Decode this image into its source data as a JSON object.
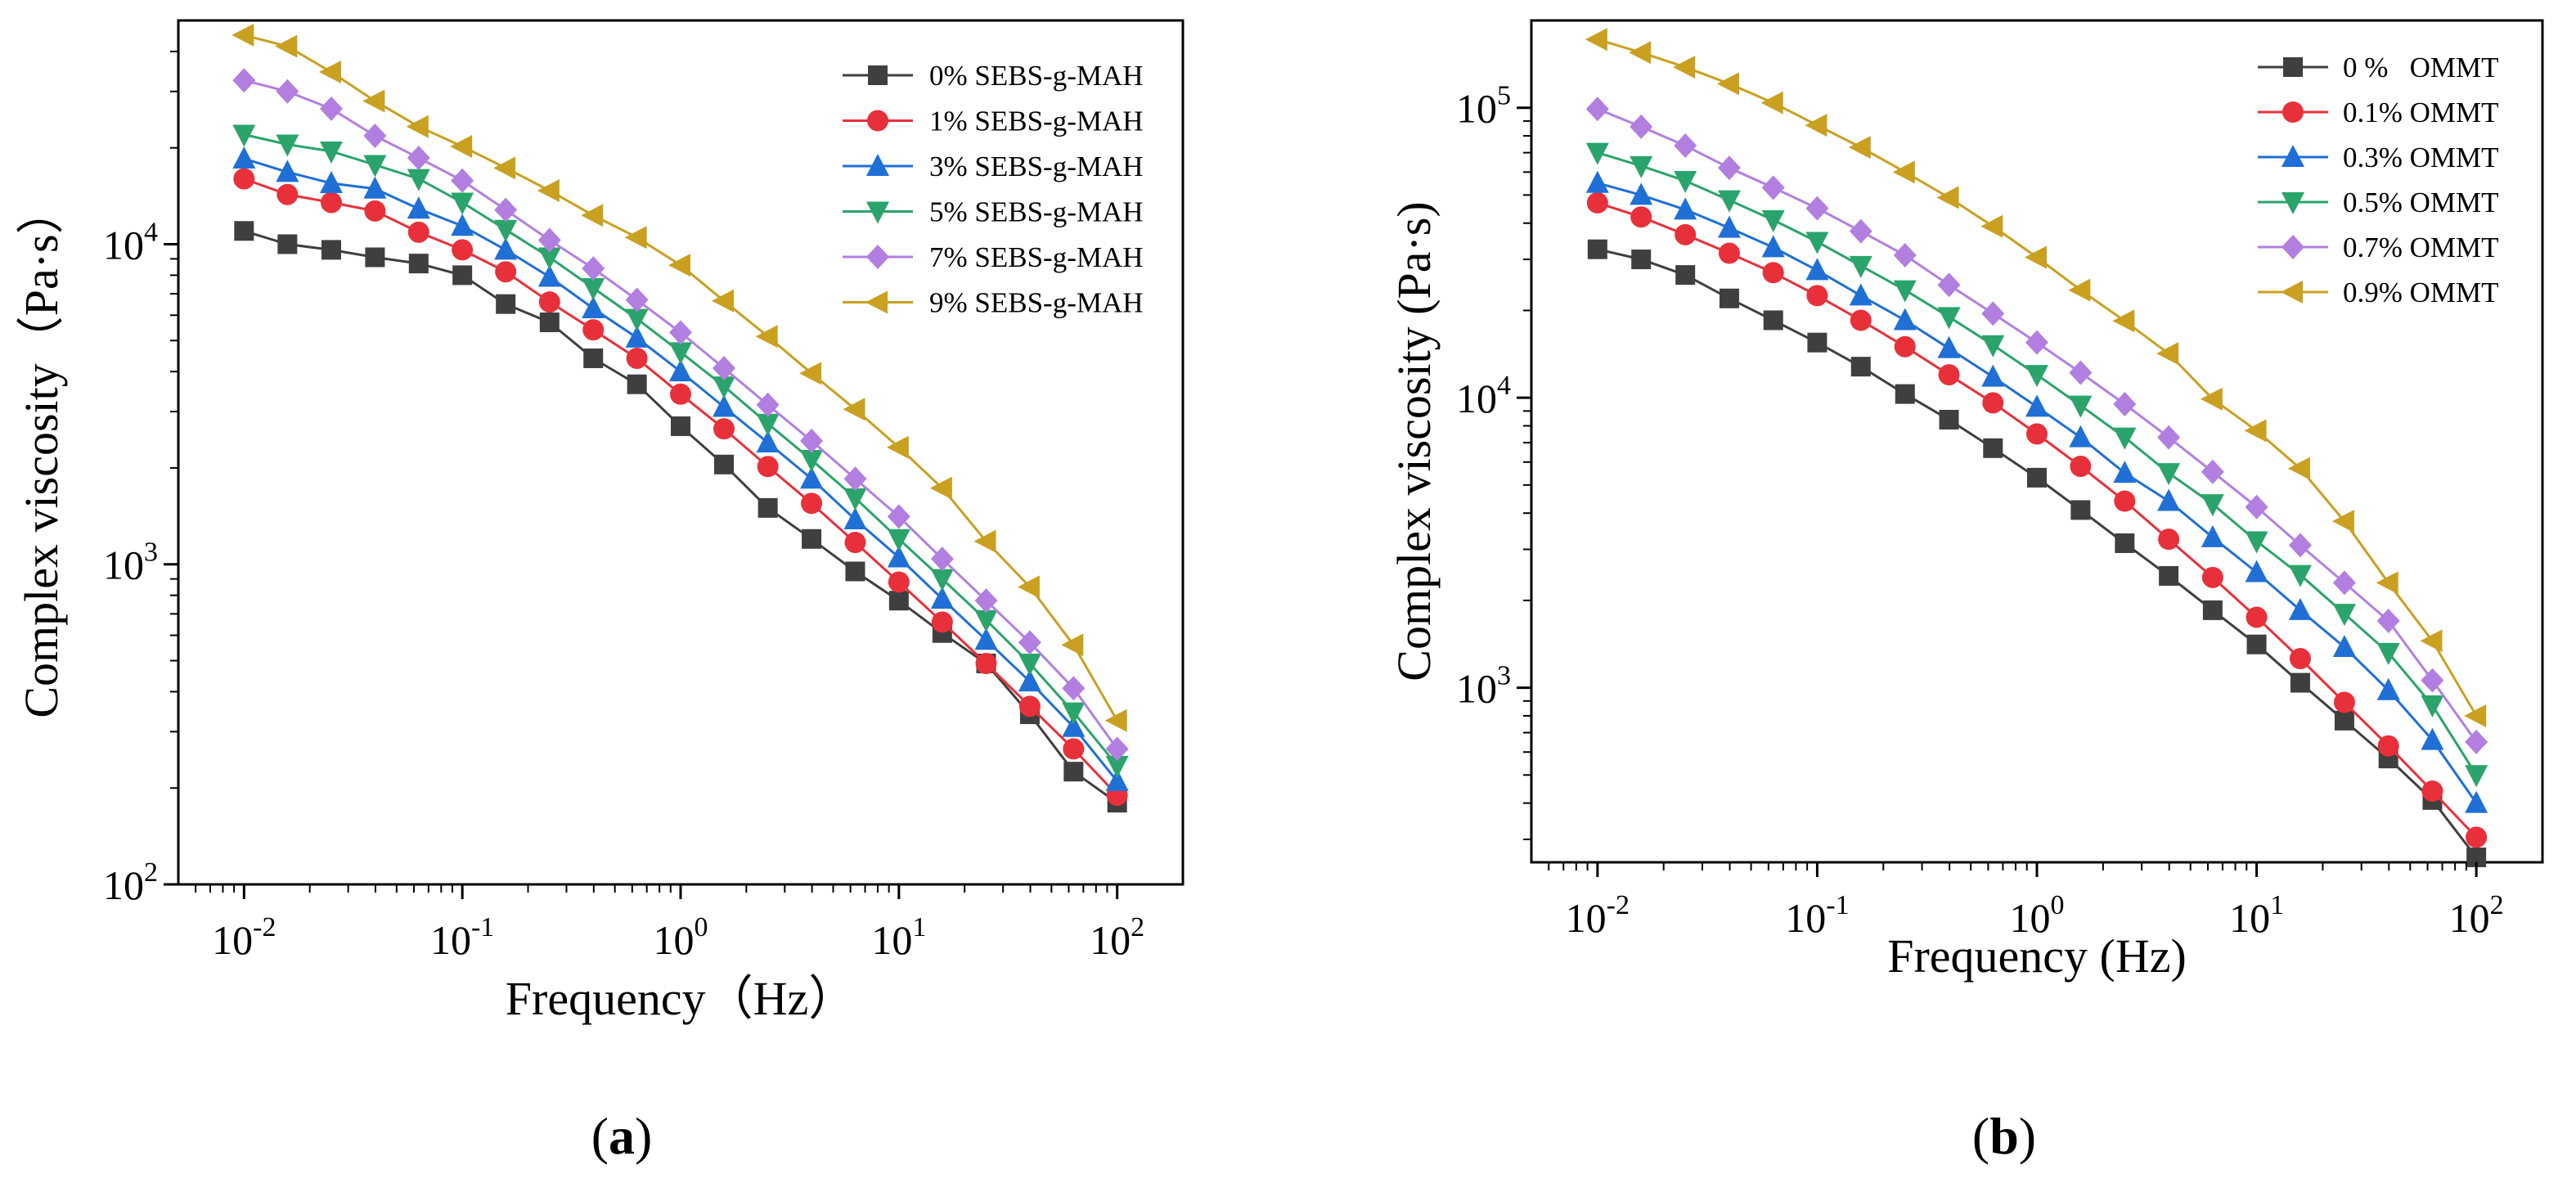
{
  "chart_data": [
    {
      "type": "line",
      "panel_label": "(a)",
      "panel_letter": "a",
      "xlabel": "Frequency（Hz）",
      "ylabel": "Complex viscosity（Pa·s）",
      "xscale": "log",
      "yscale": "log",
      "xlim": [
        0.005,
        200
      ],
      "ylim": [
        100,
        50000
      ],
      "x_ticks": [
        {
          "value": 0.01,
          "base": "10",
          "exp": "-2"
        },
        {
          "value": 0.1,
          "base": "10",
          "exp": "-1"
        },
        {
          "value": 1,
          "base": "10",
          "exp": "0"
        },
        {
          "value": 10,
          "base": "10",
          "exp": "1"
        },
        {
          "value": 100,
          "base": "10",
          "exp": "2"
        }
      ],
      "y_ticks": [
        {
          "value": 100,
          "base": "10",
          "exp": "2"
        },
        {
          "value": 1000,
          "base": "10",
          "exp": "3"
        },
        {
          "value": 10000,
          "base": "10",
          "exp": "4"
        }
      ],
      "legend_position": "top-right",
      "x": [
        0.01,
        0.0158,
        0.0251,
        0.0398,
        0.0631,
        0.1,
        0.158,
        0.251,
        0.398,
        0.631,
        1,
        1.58,
        2.51,
        3.98,
        6.31,
        10,
        15.8,
        25.1,
        39.8,
        63.1,
        100
      ],
      "series": [
        {
          "name": "0% SEBS-g-MAH",
          "color": "#3f3f3f",
          "marker": "square",
          "values": [
            11000,
            10000,
            9600,
            9100,
            8700,
            8000,
            6500,
            5700,
            4400,
            3650,
            2700,
            2050,
            1500,
            1200,
            950,
            770,
            610,
            490,
            340,
            225,
            180
          ]
        },
        {
          "name": "1% SEBS-g-MAH",
          "color": "#e8303a",
          "marker": "circle",
          "values": [
            16000,
            14300,
            13500,
            12700,
            10900,
            9600,
            8200,
            6600,
            5400,
            4400,
            3400,
            2650,
            2020,
            1550,
            1170,
            880,
            660,
            490,
            360,
            265,
            190
          ]
        },
        {
          "name": "3% SEBS-g-MAH",
          "color": "#1f6fd6",
          "marker": "triangle-up",
          "values": [
            18500,
            16800,
            15500,
            14900,
            12900,
            11400,
            9600,
            7900,
            6300,
            5100,
            4000,
            3100,
            2400,
            1850,
            1380,
            1050,
            780,
            580,
            430,
            310,
            210
          ]
        },
        {
          "name": "5% SEBS-g-MAH",
          "color": "#2aa46a",
          "marker": "triangle-down",
          "values": [
            22000,
            20500,
            19500,
            17700,
            16000,
            13500,
            11100,
            9100,
            7300,
            5850,
            4600,
            3600,
            2750,
            2120,
            1610,
            1200,
            900,
            670,
            490,
            345,
            235
          ]
        },
        {
          "name": "7% SEBS-g-MAH",
          "color": "#b27fe0",
          "marker": "diamond",
          "values": [
            32500,
            30000,
            26500,
            21800,
            18600,
            15800,
            12800,
            10300,
            8400,
            6700,
            5300,
            4100,
            3150,
            2430,
            1850,
            1410,
            1040,
            770,
            570,
            410,
            265
          ]
        },
        {
          "name": "9% SEBS-g-MAH",
          "color": "#c9a020",
          "marker": "triangle-left",
          "values": [
            45000,
            41500,
            34500,
            28000,
            23300,
            20200,
            17300,
            14700,
            12300,
            10500,
            8600,
            6650,
            5150,
            3950,
            3050,
            2320,
            1730,
            1180,
            850,
            560,
            325
          ]
        }
      ]
    },
    {
      "type": "line",
      "panel_label": "(b)",
      "panel_letter": "b",
      "xlabel": "Frequency (Hz)",
      "ylabel": "Complex viscosity (Pa·s)",
      "xscale": "log",
      "yscale": "log",
      "xlim": [
        0.005,
        200
      ],
      "ylim": [
        250,
        200000
      ],
      "x_ticks": [
        {
          "value": 0.01,
          "base": "10",
          "exp": "-2"
        },
        {
          "value": 0.1,
          "base": "10",
          "exp": "-1"
        },
        {
          "value": 1,
          "base": "10",
          "exp": "0"
        },
        {
          "value": 10,
          "base": "10",
          "exp": "1"
        },
        {
          "value": 100,
          "base": "10",
          "exp": "2"
        }
      ],
      "y_ticks": [
        {
          "value": 1000,
          "base": "10",
          "exp": "3"
        },
        {
          "value": 10000,
          "base": "10",
          "exp": "4"
        },
        {
          "value": 100000,
          "base": "10",
          "exp": "5"
        }
      ],
      "legend_position": "top-right",
      "x": [
        0.01,
        0.0158,
        0.0251,
        0.0398,
        0.0631,
        0.1,
        0.158,
        0.251,
        0.398,
        0.631,
        1,
        1.58,
        2.51,
        3.98,
        6.31,
        10,
        15.8,
        25.1,
        39.8,
        63.1,
        100
      ],
      "series": [
        {
          "name": "0 %   OMMT",
          "color": "#3f3f3f",
          "marker": "square",
          "values": [
            32500,
            30000,
            26500,
            22000,
            18500,
            15500,
            12800,
            10300,
            8400,
            6700,
            5300,
            4100,
            3150,
            2430,
            1850,
            1410,
            1040,
            770,
            570,
            410,
            260
          ]
        },
        {
          "name": "0.1% OMMT",
          "color": "#e8303a",
          "marker": "circle",
          "values": [
            47000,
            42000,
            36500,
            31500,
            27000,
            22500,
            18500,
            15000,
            12000,
            9600,
            7500,
            5800,
            4400,
            3250,
            2400,
            1750,
            1260,
            890,
            630,
            440,
            305
          ]
        },
        {
          "name": "0.3% OMMT",
          "color": "#1f6fd6",
          "marker": "triangle-up",
          "values": [
            55000,
            50000,
            44500,
            38500,
            33000,
            27500,
            22500,
            18500,
            14800,
            11800,
            9300,
            7300,
            5500,
            4400,
            3300,
            2500,
            1850,
            1380,
            980,
            660,
            400
          ]
        },
        {
          "name": "0.5% OMMT",
          "color": "#2aa46a",
          "marker": "triangle-down",
          "values": [
            70000,
            63000,
            56000,
            48000,
            41000,
            34500,
            28500,
            23500,
            19000,
            15200,
            12000,
            9400,
            7300,
            5500,
            4300,
            3200,
            2450,
            1800,
            1320,
            870,
            500
          ]
        },
        {
          "name": "0.7% OMMT",
          "color": "#b27fe0",
          "marker": "diamond",
          "values": [
            99000,
            86000,
            74000,
            62000,
            53000,
            45000,
            37500,
            31000,
            24500,
            19500,
            15500,
            12200,
            9500,
            7300,
            5550,
            4200,
            3100,
            2300,
            1700,
            1060,
            650
          ]
        },
        {
          "name": "0.9% OMMT",
          "color": "#c9a020",
          "marker": "triangle-left",
          "values": [
            172000,
            155000,
            138000,
            121000,
            104000,
            87000,
            73000,
            60000,
            49000,
            39000,
            30500,
            23500,
            18400,
            14200,
            9900,
            7700,
            5700,
            3750,
            2300,
            1450,
            800
          ]
        }
      ]
    }
  ]
}
